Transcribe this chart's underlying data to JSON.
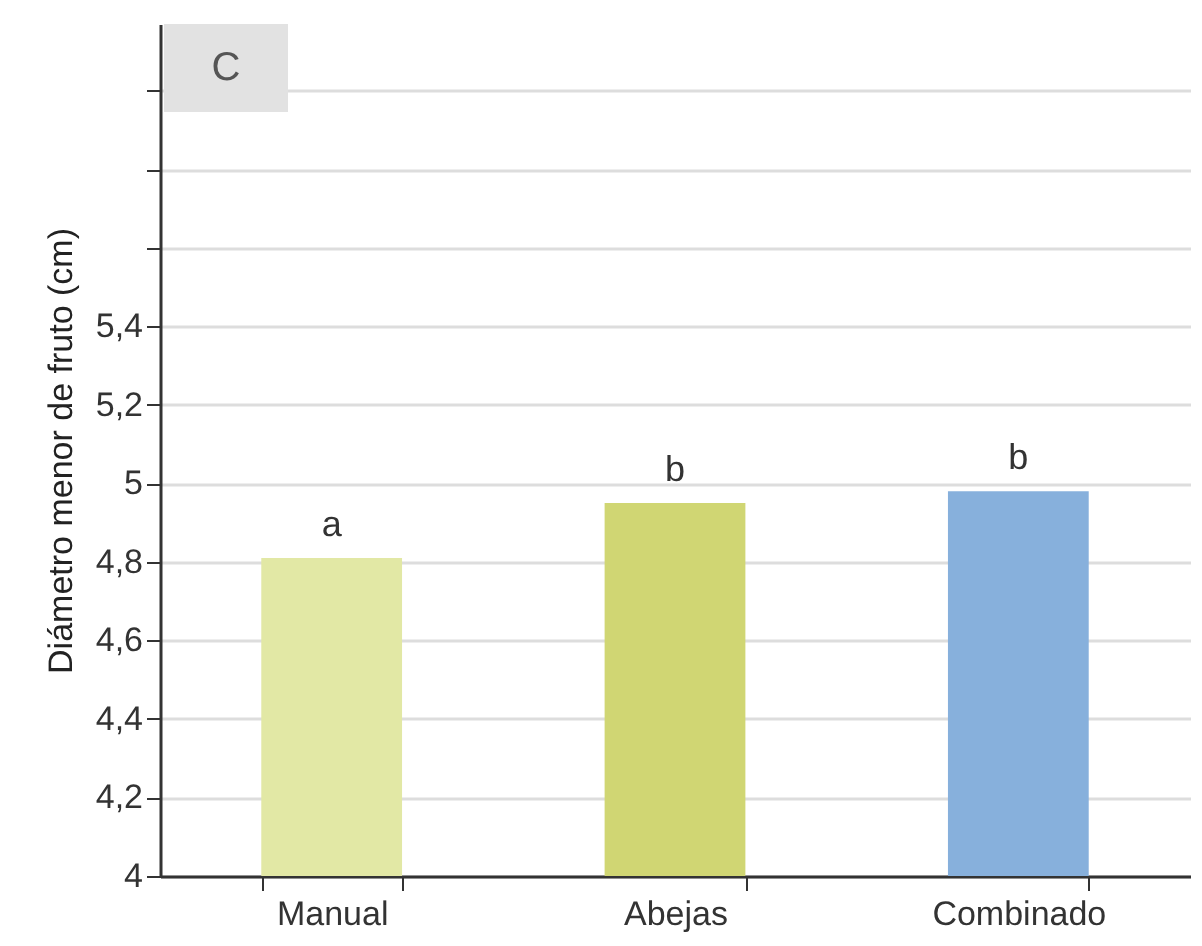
{
  "chart_data": {
    "type": "bar",
    "ylabel": "Diámetro menor de fruto (cm)",
    "categories": [
      "Manual",
      "Abejas",
      "Combinado"
    ],
    "values": [
      4.81,
      4.95,
      4.98
    ],
    "colors": [
      "#e2e8a5",
      "#d0d673",
      "#87b0dc"
    ],
    "value_labels": [
      "a",
      "b",
      "b"
    ],
    "annotations": [
      "C"
    ],
    "ylim": [
      4,
      6.17
    ],
    "yticks": [
      4,
      {
        "value": 4.2,
        "label": "4,2"
      },
      {
        "value": 4.4,
        "label": "4,4"
      },
      {
        "value": 4.6,
        "label": "4,6"
      },
      {
        "value": 4.8,
        "label": "4,8"
      },
      5,
      {
        "value": 5.2,
        "label": "5,2"
      },
      {
        "value": 5.4,
        "label": "5,4"
      },
      {
        "value": 5.6,
        "label": null
      },
      {
        "value": 5.8,
        "label": null
      },
      {
        "value": 6,
        "label": null
      }
    ],
    "grid": "y"
  }
}
